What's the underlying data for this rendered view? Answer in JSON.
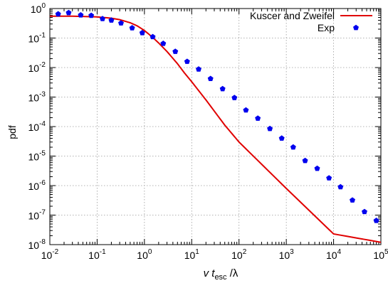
{
  "chart_data": {
    "type": "line",
    "xlabel": {
      "pre": "v t",
      "sub": "esc",
      "post": " /λ"
    },
    "ylabel": "pdf",
    "x_scale": "log",
    "y_scale": "log",
    "xlim": [
      0.01,
      100000
    ],
    "ylim": [
      1e-08,
      1
    ],
    "grid": true,
    "legend_position": "top-right",
    "x_ticks": [
      {
        "base": "10",
        "exp": "-2",
        "value": 0.01
      },
      {
        "base": "10",
        "exp": "-1",
        "value": 0.1
      },
      {
        "base": "10",
        "exp": "0",
        "value": 1
      },
      {
        "base": "10",
        "exp": "1",
        "value": 10
      },
      {
        "base": "10",
        "exp": "2",
        "value": 100
      },
      {
        "base": "10",
        "exp": "3",
        "value": 1000
      },
      {
        "base": "10",
        "exp": "4",
        "value": 10000
      },
      {
        "base": "10",
        "exp": "5",
        "value": 100000
      }
    ],
    "y_ticks": [
      {
        "base": "10",
        "exp": "-8",
        "value": 1e-08
      },
      {
        "base": "10",
        "exp": "-7",
        "value": 1e-07
      },
      {
        "base": "10",
        "exp": "-6",
        "value": 1e-06
      },
      {
        "base": "10",
        "exp": "-5",
        "value": 1e-05
      },
      {
        "base": "10",
        "exp": "-4",
        "value": 0.0001
      },
      {
        "base": "10",
        "exp": "-3",
        "value": 0.001
      },
      {
        "base": "10",
        "exp": "-2",
        "value": 0.01
      },
      {
        "base": "10",
        "exp": "-1",
        "value": 0.1
      },
      {
        "base": "10",
        "exp": "0",
        "value": 1
      }
    ],
    "series": [
      {
        "name": "Kuscer and Zweifel",
        "style": "line",
        "color": "#e00000",
        "x": [
          0.01,
          0.03,
          0.1,
          0.2,
          0.3,
          0.5,
          0.7,
          1,
          1.5,
          2,
          3,
          5,
          7,
          10,
          20,
          50,
          100,
          1000,
          10000,
          100000
        ],
        "y": [
          0.55,
          0.55,
          0.52,
          0.47,
          0.42,
          0.33,
          0.26,
          0.18,
          0.105,
          0.068,
          0.035,
          0.0135,
          0.0066,
          0.0033,
          0.0008,
          0.000112,
          3e-05,
          8e-07,
          2.3e-08,
          1.2e-08
        ]
      },
      {
        "name": "Exp",
        "style": "points",
        "color": "#0000ee",
        "x": [
          0.015,
          0.025,
          0.045,
          0.075,
          0.13,
          0.2,
          0.32,
          0.55,
          0.9,
          1.5,
          2.5,
          4.5,
          8,
          14,
          25,
          45,
          80,
          140,
          250,
          450,
          800,
          1400,
          2500,
          4500,
          8000,
          14000,
          25000,
          45000,
          80000
        ],
        "y": [
          0.65,
          0.72,
          0.6,
          0.58,
          0.45,
          0.4,
          0.32,
          0.22,
          0.15,
          0.11,
          0.065,
          0.035,
          0.016,
          0.0088,
          0.0042,
          0.0019,
          0.00095,
          0.00036,
          0.00019,
          8.5e-05,
          4e-05,
          2e-05,
          7e-06,
          3.8e-06,
          1.8e-06,
          9e-07,
          3.2e-07,
          1.3e-07,
          6.5e-08
        ]
      }
    ]
  }
}
